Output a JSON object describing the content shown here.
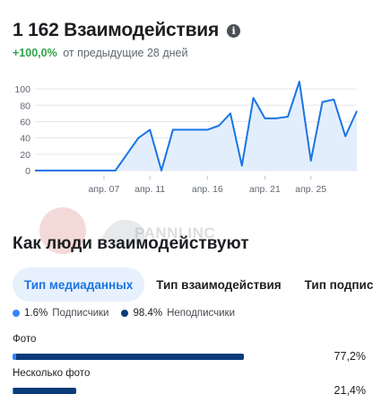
{
  "header": {
    "title": "1 162 Взаимодействия",
    "change_pct": "+100,0%",
    "change_text": "от предыдущие 28 дней",
    "info_icon": "info-icon"
  },
  "chart_data": {
    "type": "area",
    "title": "",
    "xlabel": "",
    "ylabel": "",
    "ylim": [
      0,
      110
    ],
    "y_ticks": [
      0,
      20,
      40,
      60,
      80,
      100
    ],
    "x_tick_labels": [
      {
        "label": "апр. 07",
        "day": 7
      },
      {
        "label": "апр. 11",
        "day": 11
      },
      {
        "label": "апр. 16",
        "day": 16
      },
      {
        "label": "апр. 21",
        "day": 21
      },
      {
        "label": "апр. 25",
        "day": 25
      }
    ],
    "x": [
      1,
      2,
      3,
      4,
      5,
      6,
      7,
      8,
      9,
      10,
      11,
      12,
      13,
      14,
      15,
      16,
      17,
      18,
      19,
      20,
      21,
      22,
      23,
      24,
      25,
      26,
      27,
      28,
      29
    ],
    "values": [
      0,
      0,
      0,
      0,
      0,
      0,
      0,
      0,
      20,
      40,
      50,
      0,
      50,
      50,
      50,
      50,
      55,
      70,
      6,
      89,
      64,
      64,
      66,
      109,
      12,
      84,
      87,
      42,
      73
    ],
    "grid": true,
    "line_color": "#1b74e4",
    "fill_color": "#e3eefc"
  },
  "watermark": {
    "text": "PANNI INC"
  },
  "section": {
    "title": "Как люди взаимодействуют"
  },
  "tabs": [
    {
      "label": "Тип медиаданных",
      "active": true
    },
    {
      "label": "Тип взаимодействия",
      "active": false
    },
    {
      "label": "Тип подписчиков",
      "active": false
    }
  ],
  "legend": [
    {
      "value": "1.6%",
      "label": "Подписчики",
      "color": "#2d88ff"
    },
    {
      "value": "98.4%",
      "label": "Неподписчики",
      "color": "#0a3a7a"
    }
  ],
  "metrics": [
    {
      "label": "Фото",
      "value": "77,2%",
      "total_fraction": 0.772,
      "follower_fraction": 0.016
    },
    {
      "label": "Несколько фото",
      "value": "21,4%",
      "total_fraction": 0.214,
      "follower_fraction": 0.016
    }
  ]
}
